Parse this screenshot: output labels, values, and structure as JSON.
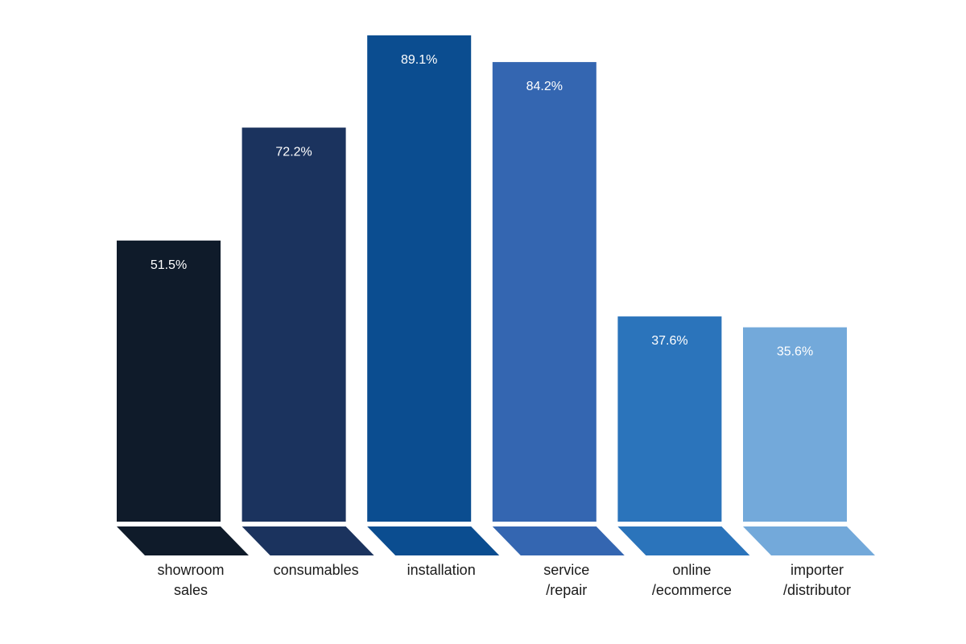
{
  "chart_data": {
    "type": "bar",
    "title": "",
    "xlabel": "",
    "ylabel": "",
    "ylim": [
      0,
      100
    ],
    "grid": false,
    "legend": "none",
    "categories": [
      [
        "showroom",
        "sales"
      ],
      [
        "consumables"
      ],
      [
        "installation"
      ],
      [
        "service",
        "/repair"
      ],
      [
        "online",
        "/ecommerce"
      ],
      [
        "importer",
        "/distributor"
      ]
    ],
    "values": [
      51.5,
      72.2,
      89.1,
      84.2,
      37.6,
      35.6
    ],
    "value_labels": [
      "51.5%",
      "72.2%",
      "89.1%",
      "84.2%",
      "37.6%",
      "35.6%"
    ],
    "colors": [
      "#0f1b2a",
      "#1b335e",
      "#0b4d90",
      "#3466b1",
      "#2b74bb",
      "#73a9da"
    ]
  }
}
